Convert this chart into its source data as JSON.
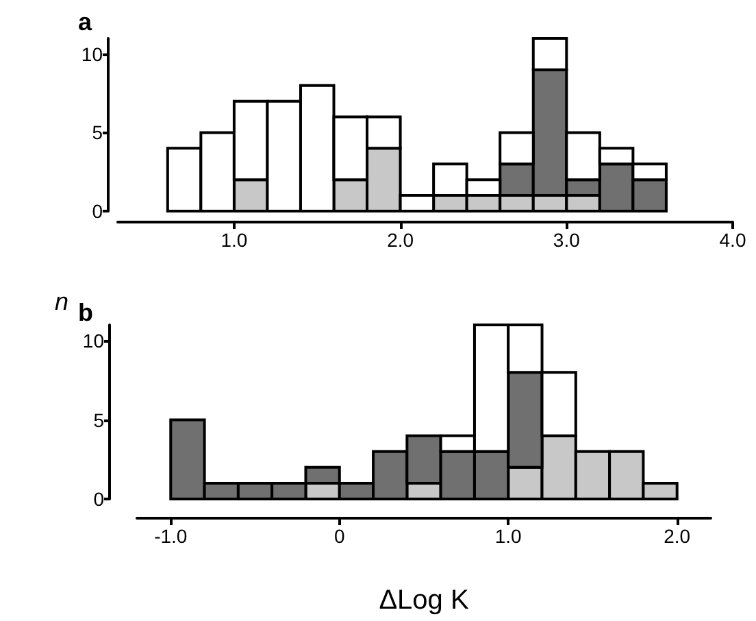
{
  "chart_data": [
    {
      "type": "bar",
      "title": "a",
      "stacked": true,
      "x": [
        0.7,
        0.9,
        1.1,
        1.3,
        1.5,
        1.7,
        1.9,
        2.1,
        2.3,
        2.5,
        2.7,
        2.9,
        3.1,
        3.3,
        3.5
      ],
      "series": [
        {
          "color": "#c8c8c8",
          "values": [
            null,
            null,
            2,
            null,
            null,
            2,
            4,
            null,
            1,
            1,
            1,
            1,
            1,
            null,
            null
          ]
        },
        {
          "color": "#707070",
          "values": [
            null,
            null,
            null,
            null,
            null,
            null,
            null,
            null,
            null,
            null,
            2,
            8,
            1,
            3,
            2
          ]
        },
        {
          "color": "#ffffff",
          "values": [
            4,
            5,
            5,
            7,
            8,
            4,
            2,
            1,
            2,
            1,
            2,
            2,
            3,
            1,
            1
          ]
        }
      ],
      "xlim": [
        0.3,
        4.0
      ],
      "xticks": [
        {
          "value": 1,
          "label": "1.0"
        },
        {
          "value": 2,
          "label": "2.0"
        },
        {
          "value": 3,
          "label": "3.0"
        },
        {
          "value": 4,
          "label": "4.0"
        }
      ],
      "ylim": [
        0,
        11
      ],
      "yticks": [
        0,
        5,
        10
      ],
      "grid": false
    },
    {
      "type": "bar",
      "title": "b",
      "xlabel": "ΔLog K",
      "ylabel": "n",
      "stacked": true,
      "x": [
        -0.9,
        -0.7,
        -0.5,
        -0.3,
        -0.1,
        0.1,
        0.3,
        0.5,
        0.7,
        0.9,
        1.1,
        1.3,
        1.5,
        1.7,
        1.9
      ],
      "series": [
        {
          "color": "#c8c8c8",
          "values": [
            null,
            null,
            null,
            null,
            1,
            null,
            null,
            1,
            null,
            null,
            2,
            4,
            3,
            3,
            1
          ]
        },
        {
          "color": "#707070",
          "values": [
            5,
            1,
            1,
            1,
            1,
            1,
            3,
            3,
            3,
            3,
            6,
            null,
            null,
            null,
            null
          ]
        },
        {
          "color": "#ffffff",
          "values": [
            null,
            null,
            null,
            null,
            null,
            null,
            null,
            null,
            1,
            8,
            3,
            4,
            null,
            null,
            null
          ]
        }
      ],
      "xlim": [
        -1.2,
        2.2
      ],
      "xticks": [
        {
          "value": -1,
          "label": "-1.0"
        },
        {
          "value": 0,
          "label": "0"
        },
        {
          "value": 1,
          "label": "1.0"
        },
        {
          "value": 2,
          "label": "2.0"
        }
      ],
      "ylim": [
        0,
        11
      ],
      "yticks": [
        0,
        5,
        10
      ],
      "grid": false
    }
  ]
}
